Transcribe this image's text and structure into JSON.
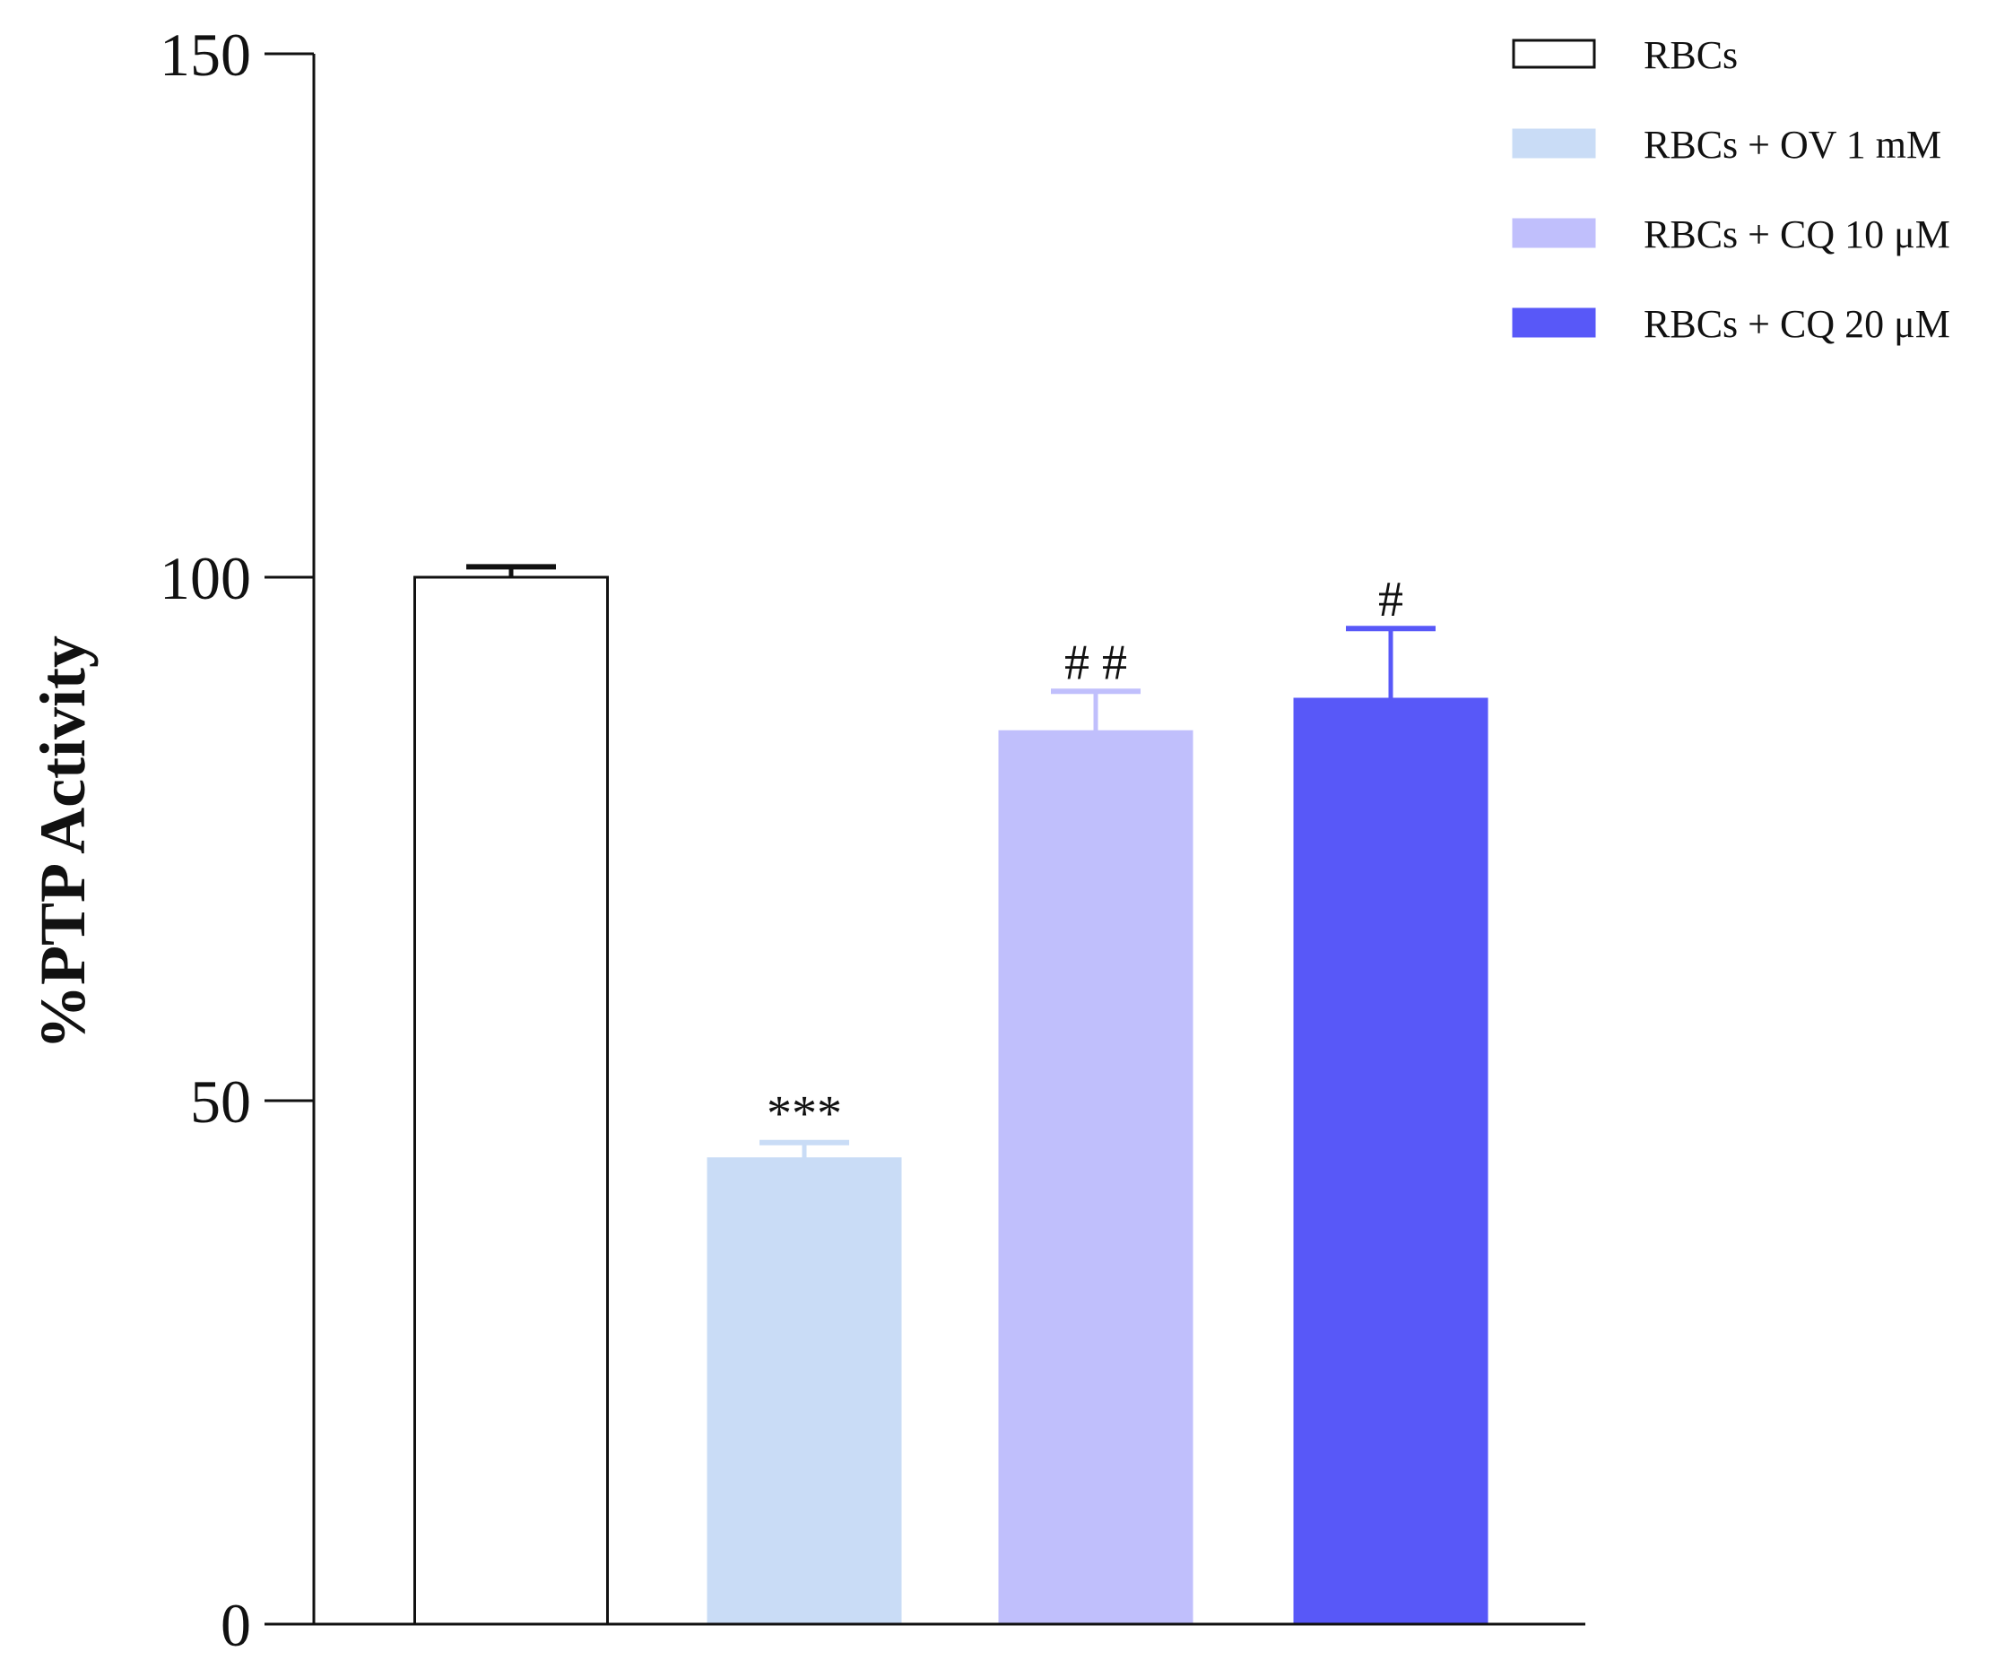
{
  "chart_data": {
    "type": "bar",
    "title": "",
    "xlabel": "",
    "ylabel": "%PTP Activity",
    "ylim": [
      0,
      150
    ],
    "yticks": [
      0,
      50,
      100,
      150
    ],
    "grid": false,
    "legend_position": "top-right",
    "series": [
      {
        "name": "RBCs",
        "value": 100,
        "error": 1,
        "fill": "#ffffff",
        "stroke": "#111111",
        "annotation": ""
      },
      {
        "name": "RBCs + OV 1 mM",
        "value": 44.5,
        "error": 1.5,
        "fill": "#c9dcf6",
        "stroke": "#c9dcf6",
        "annotation": "***"
      },
      {
        "name": "RBCs + CQ 10 μM",
        "value": 85.3,
        "error": 3.8,
        "fill": "#c0bffc",
        "stroke": "#c0bffc",
        "annotation": "# #"
      },
      {
        "name": "RBCs + CQ 20 μM",
        "value": 88.4,
        "error": 6.7,
        "fill": "#5858f8",
        "stroke": "#5858f8",
        "annotation": "#"
      }
    ]
  }
}
